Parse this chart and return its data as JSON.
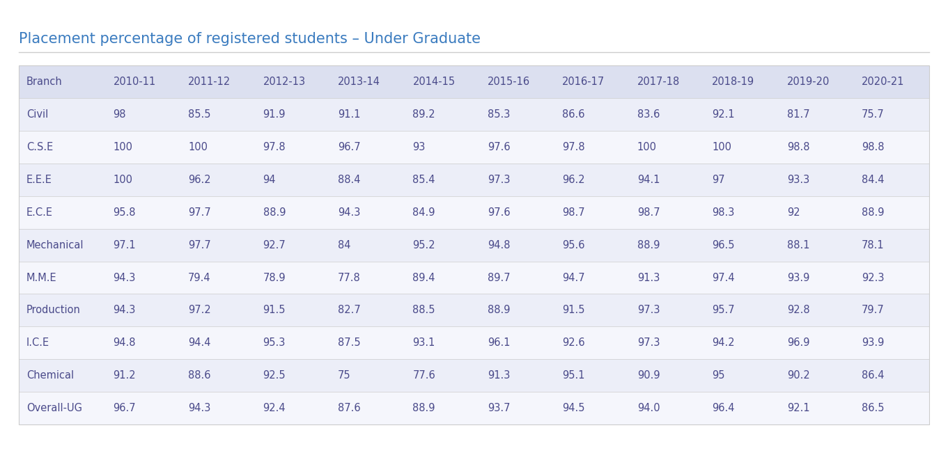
{
  "title": "Placement percentage of registered students – Under Graduate",
  "title_color": "#3a7bbf",
  "title_fontsize": 15,
  "columns": [
    "Branch",
    "2010-11",
    "2011-12",
    "2012-13",
    "2013-14",
    "2014-15",
    "2015-16",
    "2016-17",
    "2017-18",
    "2018-19",
    "2019-20",
    "2020-21"
  ],
  "rows": [
    [
      "Civil",
      "98",
      "85.5",
      "91.9",
      "91.1",
      "89.2",
      "85.3",
      "86.6",
      "83.6",
      "92.1",
      "81.7",
      "75.7"
    ],
    [
      "C.S.E",
      "100",
      "100",
      "97.8",
      "96.7",
      "93",
      "97.6",
      "97.8",
      "100",
      "100",
      "98.8",
      "98.8"
    ],
    [
      "E.E.E",
      "100",
      "96.2",
      "94",
      "88.4",
      "85.4",
      "97.3",
      "96.2",
      "94.1",
      "97",
      "93.3",
      "84.4"
    ],
    [
      "E.C.E",
      "95.8",
      "97.7",
      "88.9",
      "94.3",
      "84.9",
      "97.6",
      "98.7",
      "98.7",
      "98.3",
      "92",
      "88.9"
    ],
    [
      "Mechanical",
      "97.1",
      "97.7",
      "92.7",
      "84",
      "95.2",
      "94.8",
      "95.6",
      "88.9",
      "96.5",
      "88.1",
      "78.1"
    ],
    [
      "M.M.E",
      "94.3",
      "79.4",
      "78.9",
      "77.8",
      "89.4",
      "89.7",
      "94.7",
      "91.3",
      "97.4",
      "93.9",
      "92.3"
    ],
    [
      "Production",
      "94.3",
      "97.2",
      "91.5",
      "82.7",
      "88.5",
      "88.9",
      "91.5",
      "97.3",
      "95.7",
      "92.8",
      "79.7"
    ],
    [
      "I.C.E",
      "94.8",
      "94.4",
      "95.3",
      "87.5",
      "93.1",
      "96.1",
      "92.6",
      "97.3",
      "94.2",
      "96.9",
      "93.9"
    ],
    [
      "Chemical",
      "91.2",
      "88.6",
      "92.5",
      "75",
      "77.6",
      "91.3",
      "95.1",
      "90.9",
      "95",
      "90.2",
      "86.4"
    ],
    [
      "Overall-UG",
      "96.7",
      "94.3",
      "92.4",
      "87.6",
      "88.9",
      "93.7",
      "94.5",
      "94.0",
      "96.4",
      "92.1",
      "86.5"
    ]
  ],
  "header_bg": "#dce0f0",
  "row_bg_odd": "#eceef8",
  "row_bg_even": "#f5f6fc",
  "cell_text_color": "#4a4a8a",
  "header_text_color": "#4a4a8a",
  "bg_color": "#ffffff",
  "separator_line_color": "#cccccc",
  "title_underline_color": "#cccccc"
}
